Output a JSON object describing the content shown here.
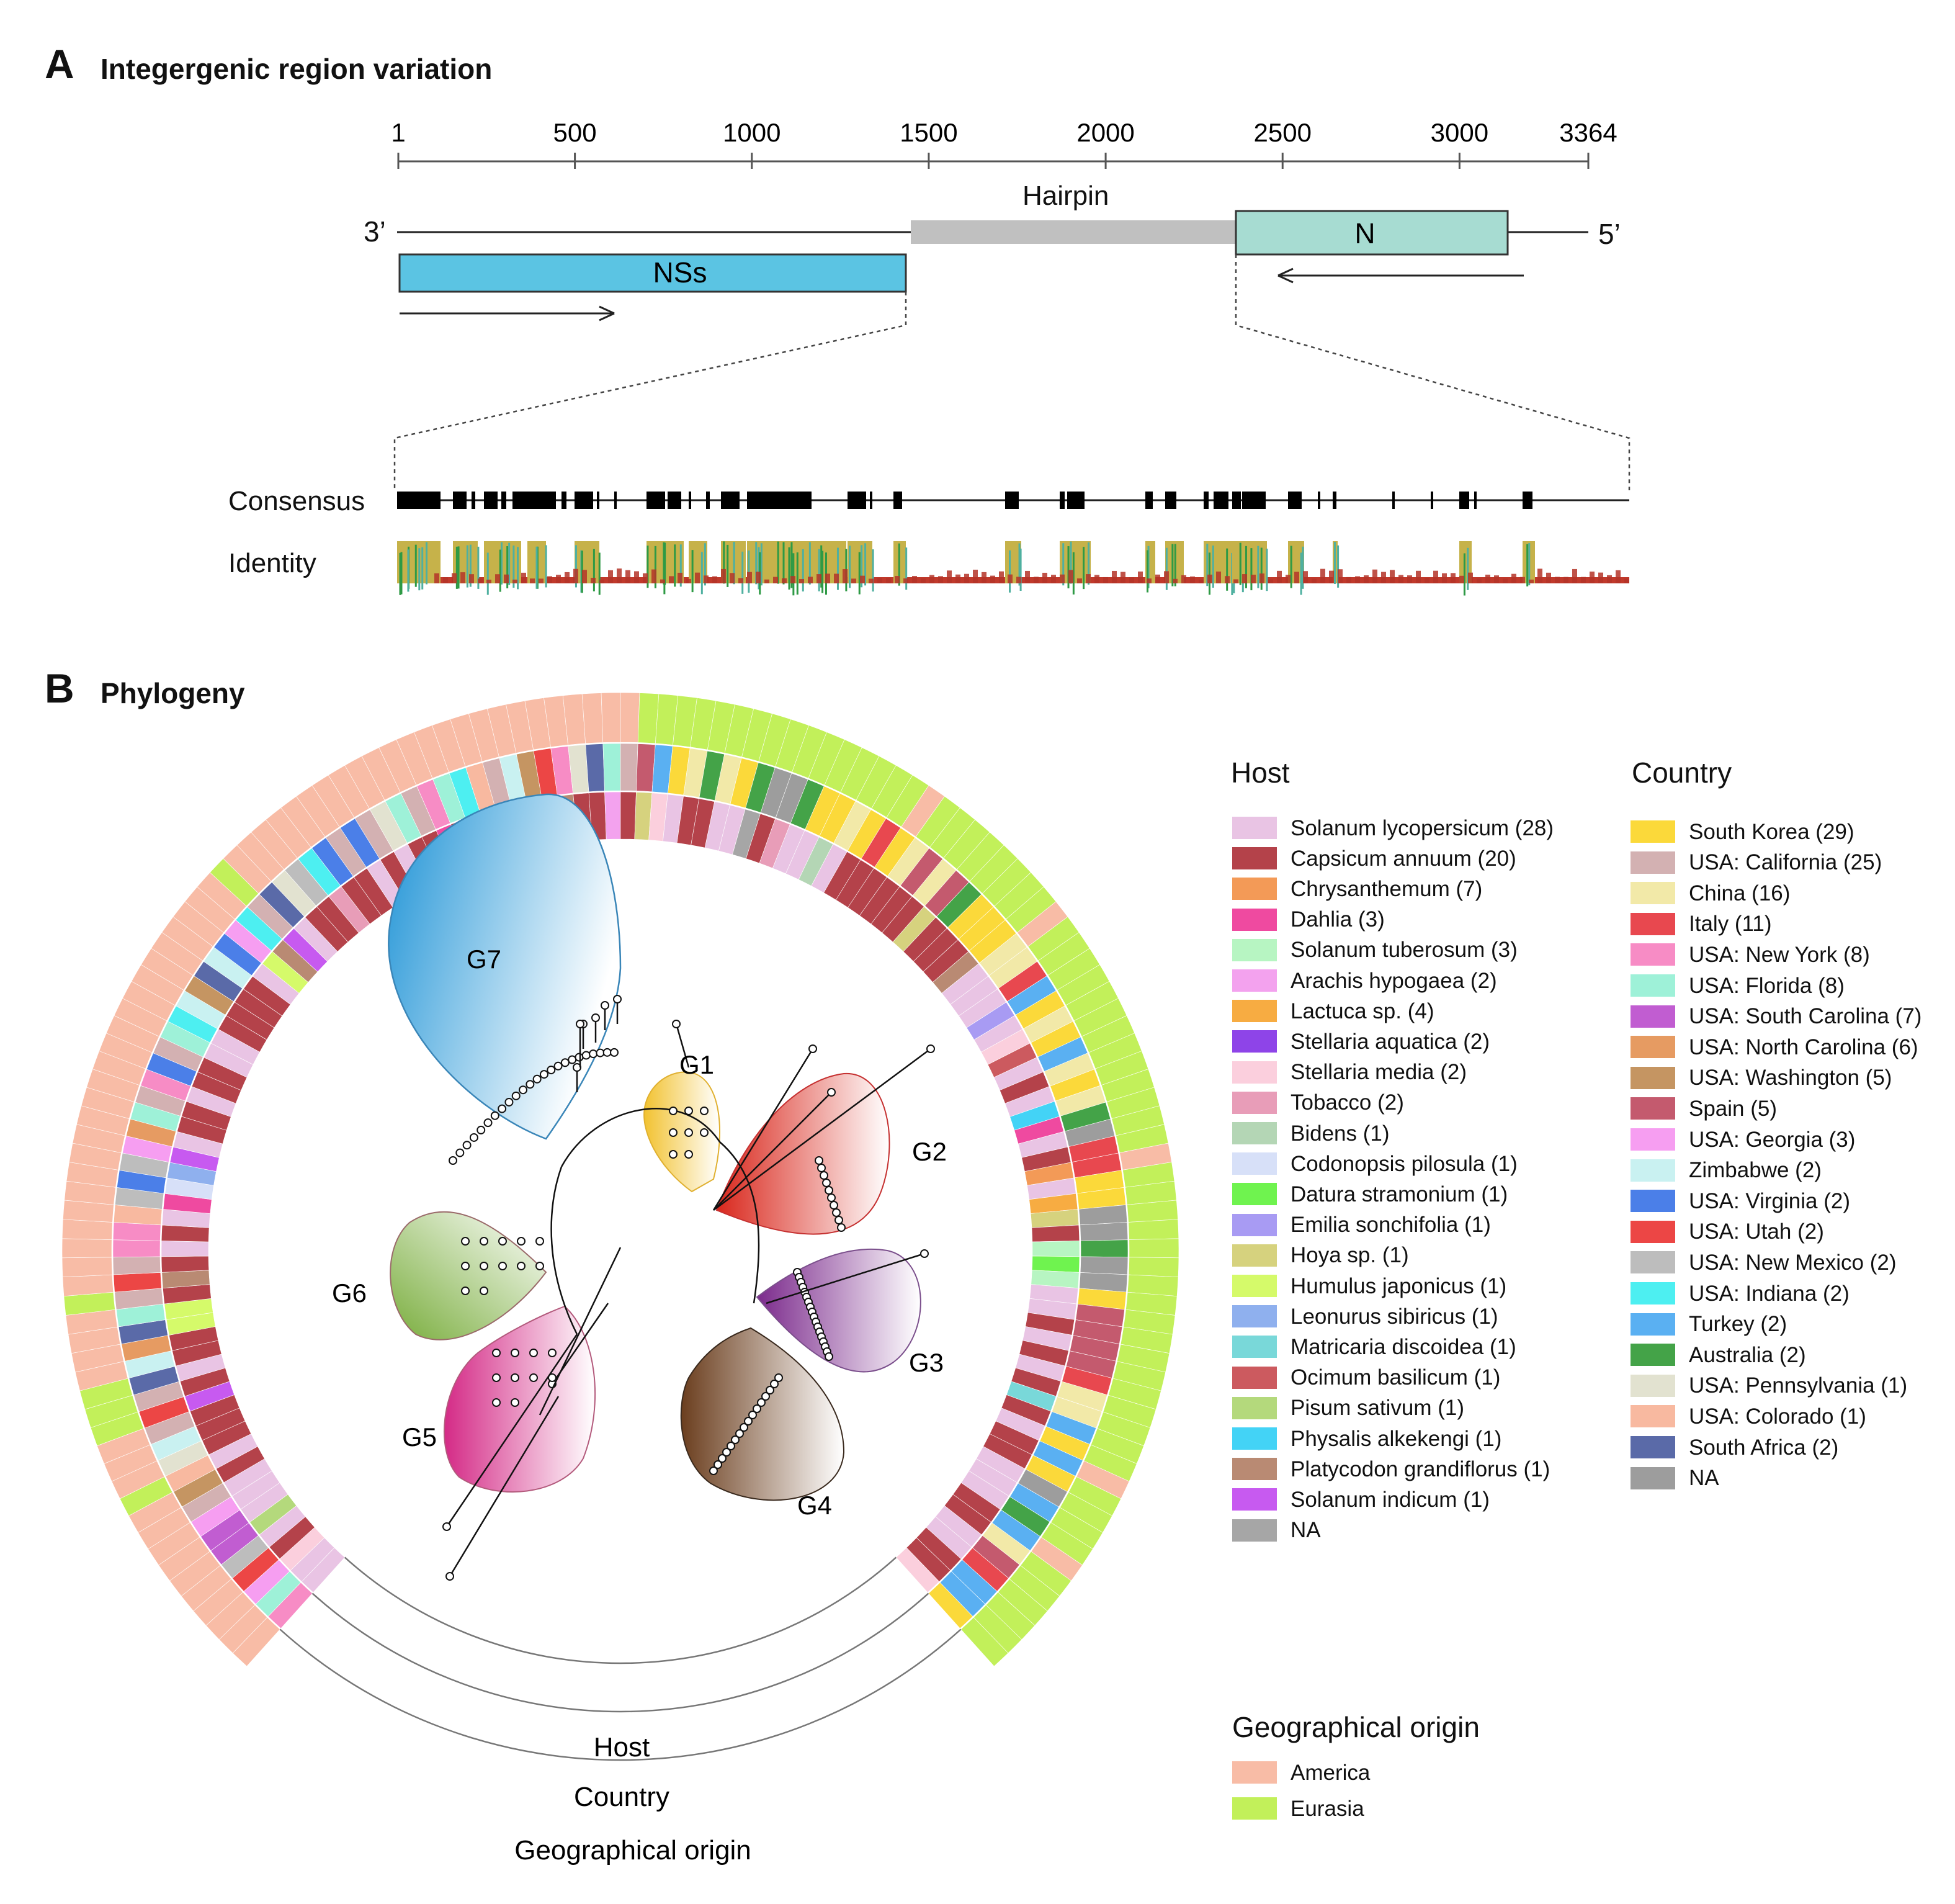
{
  "panelA": {
    "letter": "A",
    "title": "Integergenic region variation",
    "axis_ticks": [
      {
        "value": 1,
        "label": "1"
      },
      {
        "value": 500,
        "label": "500"
      },
      {
        "value": 1000,
        "label": "1000"
      },
      {
        "value": 1500,
        "label": "1500"
      },
      {
        "value": 2000,
        "label": "2000"
      },
      {
        "value": 2500,
        "label": "2500"
      },
      {
        "value": 3000,
        "label": "3000"
      },
      {
        "value": 3364,
        "label": "3364"
      }
    ],
    "end3": "3’",
    "end5": "5’",
    "hairpin_label": "Hairpin",
    "genes": [
      {
        "name": "NSs",
        "start": 1,
        "end": 1430,
        "strand": "+",
        "color": "#5bc4e3"
      },
      {
        "name": "N",
        "start": 2380,
        "end": 3150,
        "strand": "-",
        "color": "#a7dcd2"
      }
    ],
    "hairpin": {
      "start": 1450,
      "end": 2380,
      "color": "#c0c0c0"
    },
    "consensus_label": "Consensus",
    "identity_label": "Identity"
  },
  "panelB": {
    "letter": "B",
    "title": "Phylogeny",
    "clades": [
      "G1",
      "G2",
      "G3",
      "G4",
      "G5",
      "G6",
      "G7"
    ],
    "clade_colors": [
      "#f2c230",
      "#d9271c",
      "#7b2a8c",
      "#6b3e1e",
      "#d42a86",
      "#79ad3c",
      "#1e93d6"
    ],
    "ring_labels": {
      "host": "Host",
      "country": "Country",
      "origin": "Geographical origin"
    }
  },
  "legend_host": {
    "title": "Host",
    "items": [
      {
        "label": "Solanum lycopersicum (28)",
        "color": "#e9c4e4"
      },
      {
        "label": "Capsicum annuum (20)",
        "color": "#b4424a"
      },
      {
        "label": "Chrysanthemum (7)",
        "color": "#f39a57"
      },
      {
        "label": "Dahlia (3)",
        "color": "#ef4aa0"
      },
      {
        "label": "Solanum tuberosum (3)",
        "color": "#b7f5c2"
      },
      {
        "label": "Arachis hypogaea (2)",
        "color": "#f3a2ee"
      },
      {
        "label": "Lactuca sp. (4)",
        "color": "#f7ac42"
      },
      {
        "label": "Stellaria aquatica (2)",
        "color": "#8e44e8"
      },
      {
        "label": "Stellaria media (2)",
        "color": "#fbcfdd"
      },
      {
        "label": "Tobacco (2)",
        "color": "#e89db8"
      },
      {
        "label": "Bidens (1)",
        "color": "#b4d6b5"
      },
      {
        "label": "Codonopsis pilosula (1)",
        "color": "#d7e0f8"
      },
      {
        "label": "Datura stramonium (1)",
        "color": "#6ff34f"
      },
      {
        "label": "Emilia sonchifolia (1)",
        "color": "#a89bf3"
      },
      {
        "label": "Hoya sp. (1)",
        "color": "#d6d27e"
      },
      {
        "label": "Humulus japonicus (1)",
        "color": "#d5fa6a"
      },
      {
        "label": "Leonurus sibiricus (1)",
        "color": "#8fb0ee"
      },
      {
        "label": "Matricaria discoidea (1)",
        "color": "#79d8d9"
      },
      {
        "label": "Ocimum basilicum (1)",
        "color": "#cc5a5f"
      },
      {
        "label": "Pisum sativum (1)",
        "color": "#b4d97c"
      },
      {
        "label": "Physalis alkekengi (1)",
        "color": "#43d3f6"
      },
      {
        "label": "Platycodon grandiflorus (1)",
        "color": "#b98a73"
      },
      {
        "label": "Solanum indicum (1)",
        "color": "#c75af0"
      },
      {
        "label": "NA",
        "color": "#a6a6a6"
      }
    ]
  },
  "legend_country": {
    "title": "Country",
    "items": [
      {
        "label": "South Korea (29)",
        "color": "#fbd93a"
      },
      {
        "label": "USA: California (25)",
        "color": "#d3b1b2"
      },
      {
        "label": "China (16)",
        "color": "#f2e9a8"
      },
      {
        "label": "Italy (11)",
        "color": "#e8484f"
      },
      {
        "label": "USA: New York (8)",
        "color": "#f78cc5"
      },
      {
        "label": "USA: Florida (8)",
        "color": "#9ef1d8"
      },
      {
        "label": "USA: South Carolina (7)",
        "color": "#c15dd1"
      },
      {
        "label": "USA: North Carolina (6)",
        "color": "#e69b62"
      },
      {
        "label": "USA: Washington (5)",
        "color": "#c59562"
      },
      {
        "label": "Spain (5)",
        "color": "#c45a6e"
      },
      {
        "label": "USA: Georgia (3)",
        "color": "#f69ef1"
      },
      {
        "label": "Zimbabwe (2)",
        "color": "#c9f1f1"
      },
      {
        "label": "USA: Virginia (2)",
        "color": "#4b7fe8"
      },
      {
        "label": "USA: Utah (2)",
        "color": "#ec4645"
      },
      {
        "label": "USA: New Mexico (2)",
        "color": "#bdbdbd"
      },
      {
        "label": "USA: Indiana (2)",
        "color": "#4deff1"
      },
      {
        "label": "Turkey (2)",
        "color": "#5ab0f2"
      },
      {
        "label": "Australia (2)",
        "color": "#44a348"
      },
      {
        "label": "USA: Pennsylvania (1)",
        "color": "#e2e2d0"
      },
      {
        "label": "USA: Colorado (1)",
        "color": "#f8b9a0"
      },
      {
        "label": "South Africa (2)",
        "color": "#5a6aa8"
      },
      {
        "label": "NA",
        "color": "#9d9d9d"
      }
    ]
  },
  "legend_origin": {
    "title": "Geographical origin",
    "items": [
      {
        "label": "America",
        "color": "#f8bca6"
      },
      {
        "label": "Eurasia",
        "color": "#c2f05a"
      }
    ]
  }
}
